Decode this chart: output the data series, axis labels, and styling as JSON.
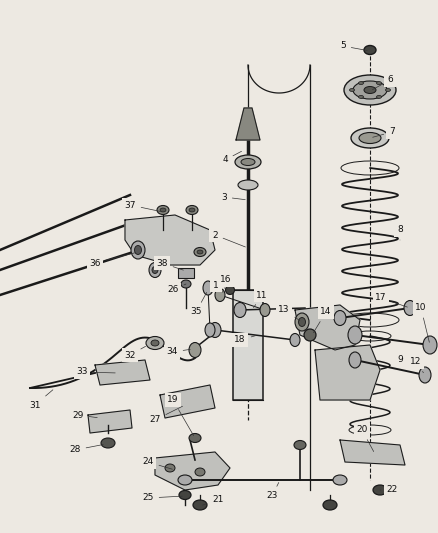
{
  "bg_color": "#ede9e2",
  "line_color": "#1a1a1a",
  "label_color": "#111111",
  "fig_width": 4.38,
  "fig_height": 5.33,
  "dpi": 100
}
